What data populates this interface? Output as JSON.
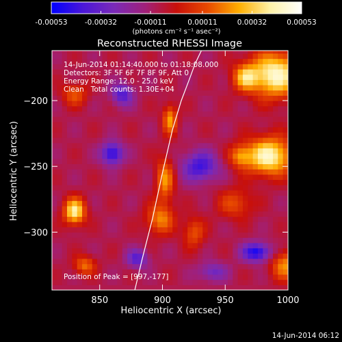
{
  "colorbar": {
    "ticks": [
      "-0.00053",
      "-0.00032",
      "-0.00011",
      "0.00011",
      "0.00032",
      "0.00053"
    ],
    "tick_values": [
      -0.00053,
      -0.00032,
      -0.00011,
      0.00011,
      0.00032,
      0.00053
    ],
    "range": [
      -0.00053,
      0.00053
    ],
    "units": "(photons cm⁻² s⁻¹ asec⁻²)",
    "colors": [
      "#0000ff",
      "#4a16d8",
      "#7a2ab8",
      "#a0207a",
      "#c8100a",
      "#e84a00",
      "#ffae00",
      "#fff2a8",
      "#ffffff"
    ]
  },
  "chart_data": {
    "type": "heatmap",
    "title": "Reconstructed RHESSI Image",
    "xlabel": "Heliocentric X (arcsec)",
    "ylabel": "Heliocentric Y (arcsec)",
    "xlim": [
      812,
      1000
    ],
    "ylim": [
      -344,
      -162
    ],
    "xticks": [
      850,
      900,
      950,
      1000
    ],
    "yticks": [
      -200,
      -250,
      -300
    ],
    "xtick_labels": [
      "850",
      "900",
      "950",
      "1000"
    ],
    "ytick_labels": [
      "−200",
      "−250",
      "−300"
    ],
    "annotations": [
      "14-Jun-2014 01:14:40.000 to 01:18:08.000",
      "Detectors: 3F 5F 6F 7F 8F 9F, Att 0",
      "Energy Range: 12.0 - 25.0 keV",
      "Clean   Total counts: 1.30E+04"
    ],
    "peak_label": "Position of Peak = [997,-177]",
    "peak_position": [
      997,
      -177
    ],
    "limb_curve": {
      "x": [
        878,
        884,
        892,
        900,
        908,
        915,
        921,
        926,
        931
      ],
      "y": [
        -344,
        -320,
        -290,
        -255,
        -222,
        -200,
        -185,
        -172,
        -162
      ]
    },
    "sources": [
      {
        "x": 990,
        "y": -180,
        "amp": 0.00053,
        "sx": 14,
        "sy": 12
      },
      {
        "x": 966,
        "y": -182,
        "amp": 0.00034,
        "sx": 7,
        "sy": 7
      },
      {
        "x": 985,
        "y": -242,
        "amp": 0.00052,
        "sx": 13,
        "sy": 10
      },
      {
        "x": 962,
        "y": -242,
        "amp": 0.00026,
        "sx": 6,
        "sy": 6
      },
      {
        "x": 830,
        "y": -195,
        "amp": 0.00022,
        "sx": 7,
        "sy": 6
      },
      {
        "x": 906,
        "y": -214,
        "amp": 0.00032,
        "sx": 4,
        "sy": 8
      },
      {
        "x": 902,
        "y": -260,
        "amp": 0.0003,
        "sx": 5,
        "sy": 12
      },
      {
        "x": 898,
        "y": -290,
        "amp": 0.00028,
        "sx": 8,
        "sy": 8
      },
      {
        "x": 925,
        "y": -300,
        "amp": 0.00022,
        "sx": 6,
        "sy": 8
      },
      {
        "x": 830,
        "y": -284,
        "amp": 0.00048,
        "sx": 6,
        "sy": 7
      },
      {
        "x": 838,
        "y": -325,
        "amp": 0.00026,
        "sx": 6,
        "sy": 5
      },
      {
        "x": 998,
        "y": -325,
        "amp": 0.0003,
        "sx": 8,
        "sy": 8
      },
      {
        "x": 958,
        "y": -278,
        "amp": 0.0002,
        "sx": 10,
        "sy": 8
      },
      {
        "x": 860,
        "y": -240,
        "amp": -0.0004,
        "sx": 6,
        "sy": 6
      },
      {
        "x": 868,
        "y": -195,
        "amp": -0.0003,
        "sx": 6,
        "sy": 6
      },
      {
        "x": 975,
        "y": -315,
        "amp": -0.00042,
        "sx": 8,
        "sy": 5
      },
      {
        "x": 930,
        "y": -250,
        "amp": -0.00034,
        "sx": 10,
        "sy": 8
      },
      {
        "x": 880,
        "y": -320,
        "amp": -0.00028,
        "sx": 6,
        "sy": 5
      },
      {
        "x": 940,
        "y": -330,
        "amp": -0.00022,
        "sx": 8,
        "sy": 5
      }
    ]
  },
  "footer_timestamp": "14-Jun-2014 06:12"
}
